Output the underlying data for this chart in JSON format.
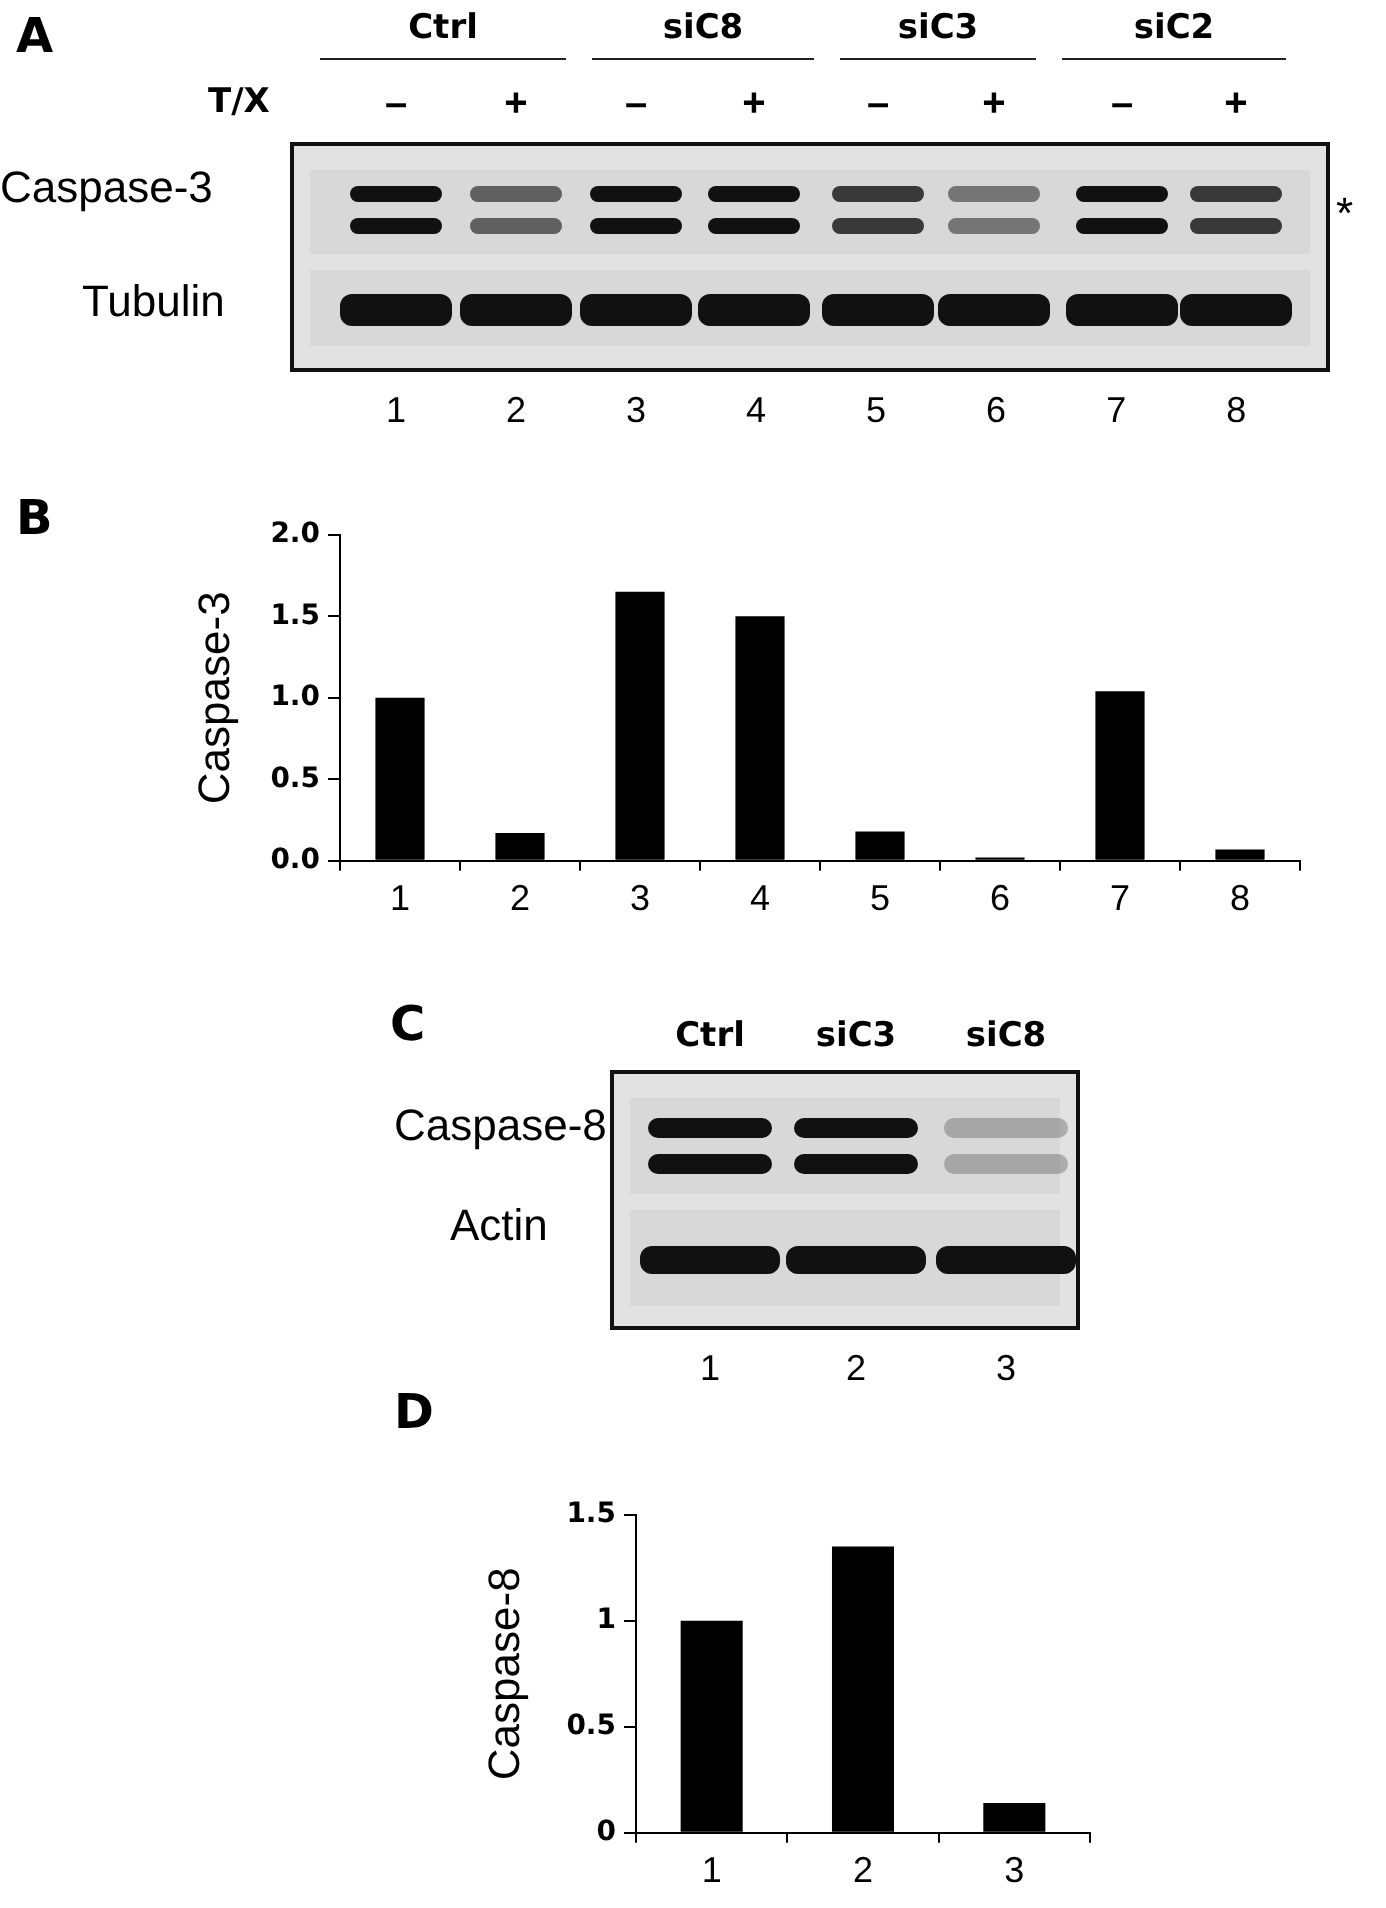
{
  "chart_data": [
    {
      "type": "other",
      "title": "A",
      "annotations": [
        "Ctrl",
        "siC8",
        "siC3",
        "siC2",
        "T/X",
        "–",
        "+",
        "–",
        "+",
        "–",
        "+",
        "–",
        "+",
        "Caspase-3",
        "Tubulin",
        "*",
        "1 2 3 4 5 6 7 8"
      ]
    },
    {
      "type": "bar",
      "title": "B",
      "ylabel": "Caspase-3",
      "categories": [
        "1",
        "2",
        "3",
        "4",
        "5",
        "6",
        "7",
        "8"
      ],
      "values": [
        1.0,
        0.17,
        1.65,
        1.5,
        0.18,
        0.02,
        1.04,
        0.07
      ],
      "color": "#000000",
      "ylim": [
        0,
        2
      ],
      "yticks": [
        {
          "value": 0,
          "label": "0.0"
        },
        0.5,
        {
          "value": 1,
          "label": "1.0"
        },
        1.5,
        {
          "value": 2,
          "label": "2.0"
        }
      ],
      "grid": false,
      "legend": false
    },
    {
      "type": "other",
      "title": "C",
      "annotations": [
        "Ctrl",
        "siC3",
        "siC8",
        "Caspase-8",
        "Actin",
        "1",
        "2",
        "3"
      ]
    },
    {
      "type": "bar",
      "title": "D",
      "ylabel": "Caspase-8",
      "categories": [
        "1",
        "2",
        "3"
      ],
      "values": [
        1.0,
        1.35,
        0.14
      ],
      "color": "#000000",
      "ylim": [
        0,
        1.5
      ],
      "yticks": [
        0,
        0.5,
        1,
        1.5
      ],
      "grid": false,
      "legend": false
    }
  ]
}
